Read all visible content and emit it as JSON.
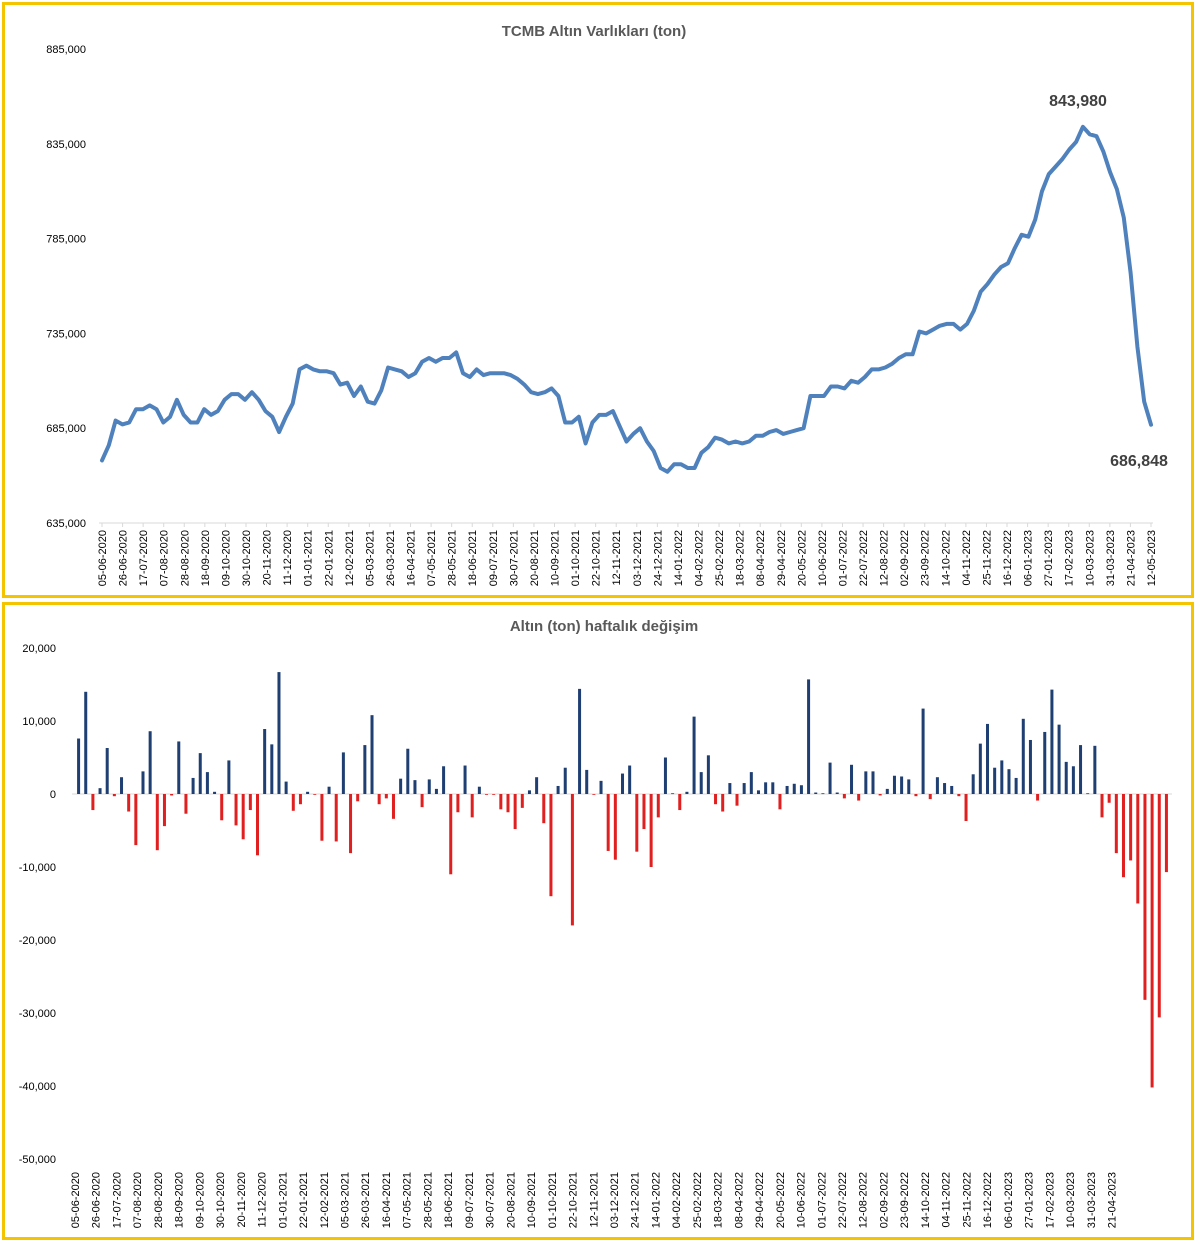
{
  "chart_data": [
    {
      "type": "line",
      "title": "TCMB Altın Varlıkları (ton)",
      "xlabel": "",
      "ylabel": "",
      "ylim": [
        635000,
        885000
      ],
      "y_ticks": [
        "635,000",
        "685,000",
        "735,000",
        "785,000",
        "835,000",
        "885,000"
      ],
      "y_tick_values": [
        635000,
        685000,
        735000,
        785000,
        835000,
        885000
      ],
      "x_tick_labels": [
        "05-06-2020",
        "26-06-2020",
        "17-07-2020",
        "07-08-2020",
        "28-08-2020",
        "18-09-2020",
        "09-10-2020",
        "30-10-2020",
        "20-11-2020",
        "11-12-2020",
        "01-01-2021",
        "22-01-2021",
        "12-02-2021",
        "05-03-2021",
        "26-03-2021",
        "16-04-2021",
        "07-05-2021",
        "28-05-2021",
        "18-06-2021",
        "09-07-2021",
        "30-07-2021",
        "20-08-2021",
        "10-09-2021",
        "01-10-2021",
        "22-10-2021",
        "12-11-2021",
        "03-12-2021",
        "24-12-2021",
        "14-01-2022",
        "04-02-2022",
        "25-02-2022",
        "18-03-2022",
        "08-04-2022",
        "29-04-2022",
        "20-05-2022",
        "10-06-2022",
        "01-07-2022",
        "22-07-2022",
        "12-08-2022",
        "02-09-2022",
        "23-09-2022",
        "14-10-2022",
        "04-11-2022",
        "25-11-2022",
        "16-12-2022",
        "06-01-2023",
        "27-01-2023",
        "17-02-2023",
        "10-03-2023",
        "31-03-2023",
        "21-04-2023",
        "12-05-2023"
      ],
      "grid": false,
      "legend": "none",
      "color": "#4f81bd",
      "values": [
        668000,
        676000,
        689000,
        687000,
        688000,
        695000,
        695000,
        697000,
        695000,
        688000,
        691000,
        700000,
        692000,
        688000,
        688000,
        695000,
        692000,
        694000,
        700000,
        703000,
        703000,
        700000,
        704000,
        700000,
        694000,
        691000,
        683000,
        691000,
        698000,
        716000,
        718000,
        716000,
        715000,
        715000,
        714000,
        708000,
        709000,
        702000,
        707000,
        699000,
        698000,
        705000,
        717000,
        716000,
        715000,
        712000,
        714000,
        720000,
        722000,
        720000,
        722000,
        722000,
        725000,
        714000,
        712000,
        716000,
        713000,
        714000,
        714000,
        714000,
        713000,
        711000,
        708000,
        704000,
        703000,
        704000,
        706000,
        702000,
        688000,
        688000,
        691000,
        677000,
        688000,
        692000,
        692000,
        694000,
        686000,
        678000,
        682000,
        685000,
        678000,
        673000,
        664000,
        662000,
        666000,
        666000,
        664000,
        664000,
        672000,
        675000,
        680000,
        679000,
        677000,
        678000,
        677000,
        678000,
        681000,
        681000,
        683000,
        684000,
        682000,
        683000,
        684000,
        685000,
        702000,
        702000,
        702000,
        707000,
        707000,
        706000,
        710000,
        709000,
        712000,
        716000,
        716000,
        717000,
        719000,
        722000,
        724000,
        724000,
        736000,
        735000,
        737000,
        739000,
        740000,
        740000,
        737000,
        740000,
        747000,
        757000,
        761000,
        766000,
        770000,
        772000,
        780000,
        787000,
        786000,
        795000,
        810000,
        819000,
        823000,
        827000,
        832000,
        836000,
        843980,
        840000,
        839000,
        831000,
        820000,
        811000,
        796000,
        767000,
        728000,
        699000,
        686848
      ],
      "annotations": [
        "843,980",
        "686,848"
      ]
    },
    {
      "type": "bar",
      "title": "Altın (ton) haftalık değişim",
      "xlabel": "",
      "ylabel": "",
      "ylim": [
        -50000,
        20000
      ],
      "y_ticks": [
        "-50,000",
        "-40,000",
        "-30,000",
        "-20,000",
        "-10,000",
        "0",
        "10,000",
        "20,000"
      ],
      "y_tick_values": [
        -50000,
        -40000,
        -30000,
        -20000,
        -10000,
        0,
        10000,
        20000
      ],
      "x_tick_labels": [
        "05-06-2020",
        "26-06-2020",
        "17-07-2020",
        "07-08-2020",
        "28-08-2020",
        "18-09-2020",
        "09-10-2020",
        "30-10-2020",
        "20-11-2020",
        "11-12-2020",
        "01-01-2021",
        "22-01-2021",
        "12-02-2021",
        "05-03-2021",
        "26-03-2021",
        "16-04-2021",
        "07-05-2021",
        "28-05-2021",
        "18-06-2021",
        "09-07-2021",
        "30-07-2021",
        "20-08-2021",
        "10-09-2021",
        "01-10-2021",
        "22-10-2021",
        "12-11-2021",
        "03-12-2021",
        "24-12-2021",
        "14-01-2022",
        "04-02-2022",
        "25-02-2022",
        "18-03-2022",
        "08-04-2022",
        "29-04-2022",
        "20-05-2022",
        "10-06-2022",
        "01-07-2022",
        "22-07-2022",
        "12-08-2022",
        "02-09-2022",
        "23-09-2022",
        "14-10-2022",
        "04-11-2022",
        "25-11-2022",
        "16-12-2022",
        "06-01-2023",
        "27-01-2023",
        "17-02-2023",
        "10-03-2023",
        "31-03-2023",
        "21-04-2023"
      ],
      "grid": false,
      "legend": "none",
      "positive_color": "#1f3f73",
      "negative_color": "#e02020",
      "values": [
        7600,
        14000,
        -2200,
        800,
        6300,
        -300,
        2300,
        -2400,
        -7000,
        3100,
        8600,
        -7700,
        -4400,
        -200,
        7200,
        -2700,
        2200,
        5600,
        3000,
        300,
        -3600,
        4600,
        -4300,
        -6200,
        -2200,
        -8400,
        8900,
        6800,
        16700,
        1700,
        -2300,
        -1400,
        300,
        -100,
        -6400,
        1000,
        -6500,
        5700,
        -8100,
        -1000,
        6700,
        10800,
        -1400,
        -600,
        -3400,
        2100,
        6200,
        1900,
        -1800,
        2000,
        700,
        3800,
        -11000,
        -2500,
        3900,
        -3200,
        1000,
        -100,
        -100,
        -2100,
        -2500,
        -4800,
        -1900,
        500,
        2300,
        -4000,
        -14000,
        1100,
        3600,
        -18000,
        14400,
        3300,
        -100,
        1800,
        -7800,
        -9000,
        2800,
        3900,
        -7900,
        -4800,
        -10000,
        -3200,
        5000,
        100,
        -2200,
        300,
        10600,
        3000,
        5300,
        -1400,
        -2400,
        1500,
        -1600,
        1500,
        3000,
        500,
        1600,
        1600,
        -2100,
        1100,
        1400,
        1200,
        15700,
        200,
        100,
        4300,
        200,
        -600,
        4000,
        -900,
        3100,
        3100,
        -200,
        700,
        2500,
        2400,
        2000,
        -300,
        11700,
        -700,
        2300,
        1500,
        1100,
        -300,
        -3700,
        2700,
        6900,
        9600,
        3600,
        4600,
        3400,
        2200,
        10300,
        7400,
        -900,
        8500,
        14300,
        9500,
        4400,
        3800,
        6700,
        100,
        6600,
        -3200,
        -1200,
        -8100,
        -11400,
        -9100,
        -15000,
        -28200,
        -40200,
        -30600,
        -10700
      ],
      "gaps": [
        115,
        144
      ]
    }
  ]
}
